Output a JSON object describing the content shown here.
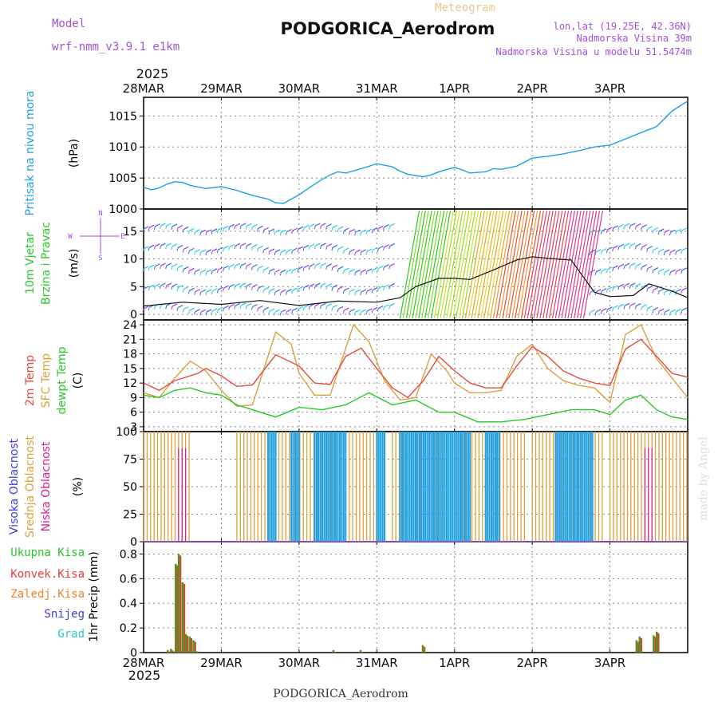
{
  "header": {
    "model_label": "Model",
    "model_name": "wrf-nmm_v3.9.1 e1km",
    "title": "PODGORICA_Aerodrom",
    "subtitle": "Meteogram",
    "lonlat": "lon,lat (19.25E, 42.36N)",
    "elevation": "Nadmorska Visina 39m",
    "model_elevation": "Nadmorska Visina u modelu 51.5474m",
    "year_top": "2025",
    "year_bottom": "2025",
    "footer": "PODGORICA_Aerodrom",
    "watermark": "made by Angel"
  },
  "colors": {
    "pressure": "#1ea0e6",
    "temp2m": "#e84a3c",
    "sfc": "#dca03c",
    "dewpt": "#28c828",
    "label_green": "#28c828",
    "label_red": "#e83c3c",
    "label_orange": "#f08228",
    "label_blue": "#3c3ce6",
    "label_cyan": "#28c8c8",
    "label_magenta": "#dc1e8c",
    "purple": "#a050dc",
    "grid": "#888888"
  },
  "chart_data": [
    {
      "type": "line",
      "panel": "pressure",
      "ylabel_lines": [
        "Pritisak na nivou mora",
        "(hPa)"
      ],
      "ylim": [
        1000,
        1018
      ],
      "yticks": [
        1000,
        1005,
        1010,
        1015
      ],
      "x_ticks": [
        "28MAR",
        "29MAR",
        "30MAR",
        "31MAR",
        "1APR",
        "2APR",
        "3APR"
      ],
      "series": [
        {
          "x": [
            0,
            0.1,
            0.2,
            0.3,
            0.4,
            0.5,
            0.6,
            0.8,
            1.0,
            1.2,
            1.4,
            1.6,
            1.7,
            1.8,
            2.0,
            2.2,
            2.3,
            2.4,
            2.5,
            2.6,
            2.8,
            3.0,
            3.2,
            3.3,
            3.4,
            3.6,
            3.7,
            3.8,
            4.0,
            4.1,
            4.2,
            4.4,
            4.5,
            4.6,
            4.8,
            5.0,
            5.2,
            5.4,
            5.6,
            5.8,
            6.0,
            6.2,
            6.4,
            6.6,
            6.8,
            7.0
          ],
          "values": [
            1003.5,
            1003.1,
            1003.4,
            1004.0,
            1004.4,
            1004.3,
            1003.8,
            1003.3,
            1003.6,
            1003.0,
            1002.2,
            1001.6,
            1001.0,
            1000.9,
            1002.3,
            1004.0,
            1004.8,
            1005.5,
            1006.0,
            1005.8,
            1006.5,
            1007.3,
            1006.8,
            1006.1,
            1005.6,
            1005.2,
            1005.5,
            1006.0,
            1006.7,
            1006.3,
            1005.8,
            1006.0,
            1006.5,
            1006.4,
            1006.9,
            1008.2,
            1008.5,
            1008.9,
            1009.4,
            1010.0,
            1010.3,
            1011.3,
            1012.3,
            1013.3,
            1015.8,
            1017.4
          ]
        }
      ]
    },
    {
      "type": "line",
      "panel": "wind",
      "ylabel_lines": [
        "10m Vjetar",
        "Brzina i Pravac",
        "(m/s)"
      ],
      "direction_legend": [
        "N",
        "S",
        "W",
        "E"
      ],
      "ylim": [
        -1,
        19
      ],
      "yticks": [
        0,
        5,
        10,
        15
      ],
      "series": [
        {
          "name": "brzina",
          "x": [
            0,
            0.5,
            1.0,
            1.5,
            2.0,
            2.5,
            3.0,
            3.3,
            3.5,
            3.8,
            4.0,
            4.2,
            4.5,
            4.8,
            5.0,
            5.3,
            5.5,
            5.8,
            6.0,
            6.3,
            6.5,
            6.8,
            7.0
          ],
          "values": [
            1.5,
            2.2,
            1.8,
            2.5,
            1.6,
            2.4,
            2.2,
            3.0,
            5.0,
            6.5,
            6.5,
            6.3,
            8.0,
            9.8,
            10.4,
            10.0,
            9.8,
            4.0,
            3.2,
            3.4,
            5.5,
            4.2,
            3.0
          ]
        }
      ]
    },
    {
      "type": "line",
      "panel": "temperature",
      "ylabel_lines": [
        "2m Temp",
        "SFC Temp",
        "dewpt Temp",
        "(C)"
      ],
      "ylim": [
        2,
        25
      ],
      "yticks": [
        3,
        6,
        9,
        12,
        15,
        18,
        21,
        24
      ],
      "series": [
        {
          "name": "2m Temp",
          "x": [
            0,
            0.2,
            0.4,
            0.7,
            0.8,
            1.0,
            1.2,
            1.4,
            1.7,
            2.0,
            2.2,
            2.4,
            2.6,
            2.8,
            3.0,
            3.2,
            3.4,
            3.6,
            3.8,
            4.0,
            4.2,
            4.4,
            4.6,
            4.8,
            5.0,
            5.2,
            5.4,
            5.6,
            5.8,
            6.0,
            6.2,
            6.4,
            6.6,
            6.8,
            7.0
          ],
          "values": [
            12,
            10.5,
            12.5,
            14,
            15,
            13.5,
            11.3,
            11.6,
            17.8,
            15.5,
            12.0,
            11.7,
            17.5,
            19.2,
            15.0,
            11.0,
            9.0,
            12.5,
            17.5,
            14.5,
            12.0,
            11.0,
            11.0,
            15.5,
            19.5,
            17.5,
            14.5,
            13.0,
            12.0,
            11.5,
            19.0,
            21.0,
            17.5,
            14.0,
            13.2
          ]
        },
        {
          "name": "SFC Temp",
          "x": [
            0,
            0.2,
            0.4,
            0.6,
            0.8,
            1.0,
            1.2,
            1.4,
            1.7,
            1.9,
            2.0,
            2.2,
            2.4,
            2.7,
            2.9,
            3.1,
            3.3,
            3.5,
            3.7,
            3.9,
            4.0,
            4.2,
            4.4,
            4.6,
            4.8,
            5.0,
            5.2,
            5.4,
            5.6,
            5.8,
            6.0,
            6.2,
            6.4,
            6.6,
            6.8,
            7.0
          ],
          "values": [
            10,
            9,
            13,
            16.5,
            14.5,
            10.5,
            7.2,
            7.5,
            22.5,
            20.0,
            14.0,
            9.5,
            9.5,
            24.0,
            20.5,
            12.5,
            8.5,
            9.0,
            18.0,
            14.5,
            12.0,
            10.0,
            10.0,
            10.5,
            17.5,
            20.0,
            15.0,
            12.5,
            11.5,
            11.0,
            8.0,
            22.0,
            24.0,
            17.0,
            13.0,
            9.0
          ]
        },
        {
          "name": "dewpt Temp",
          "x": [
            0,
            0.2,
            0.4,
            0.6,
            0.8,
            1.0,
            1.2,
            1.4,
            1.7,
            2.0,
            2.3,
            2.6,
            2.9,
            3.2,
            3.5,
            3.8,
            4.0,
            4.3,
            4.6,
            4.9,
            5.2,
            5.5,
            5.8,
            6.0,
            6.2,
            6.4,
            6.6,
            6.8,
            7.0
          ],
          "values": [
            9.5,
            9.0,
            10.5,
            11.0,
            10.0,
            9.5,
            7.5,
            6.5,
            5.0,
            7.0,
            6.5,
            7.5,
            10.0,
            7.5,
            8.5,
            6.0,
            6.0,
            4.0,
            4.0,
            4.5,
            5.5,
            6.5,
            6.5,
            5.5,
            8.5,
            9.5,
            6.5,
            5.0,
            4.5
          ]
        }
      ]
    },
    {
      "type": "bar",
      "panel": "cloud",
      "ylabel_lines": [
        "Visoka Oblacnost",
        "Srednja Oblacnost",
        "Niska Oblacnost",
        "(%)"
      ],
      "ylim": [
        0,
        100
      ],
      "yticks": [
        0,
        25,
        50,
        75,
        100
      ],
      "series": [
        {
          "name": "Srednja Oblacnost",
          "description_ranges": [
            [
              0,
              0.6
            ],
            [
              1.2,
              2.5
            ],
            [
              2.6,
              3.1
            ],
            [
              3.2,
              3.9
            ],
            [
              4.0,
              4.9
            ],
            [
              5.0,
              5.9
            ],
            [
              6.0,
              7.0
            ]
          ],
          "level": 100
        },
        {
          "name": "Visoka Oblacnost",
          "description_ranges": [
            [
              1.6,
              1.7
            ],
            [
              1.9,
              2.0
            ],
            [
              2.2,
              2.6
            ],
            [
              3.0,
              3.1
            ],
            [
              3.3,
              4.2
            ],
            [
              4.4,
              4.6
            ],
            [
              5.3,
              5.8
            ]
          ],
          "level": 100
        },
        {
          "name": "Niska Oblacnost",
          "description_ranges": [
            [
              0.45,
              0.55
            ],
            [
              6.45,
              6.55
            ]
          ],
          "level": 85
        }
      ]
    },
    {
      "type": "bar",
      "panel": "precip",
      "ylabel_lines": [
        "1hr Precip (mm)"
      ],
      "legend": [
        "Ukupna Kisa",
        "Konvek.Kisa",
        "Zaledj.Kisa",
        "Snijeg",
        "Grad"
      ],
      "ylim": [
        0,
        0.9
      ],
      "yticks": [
        0,
        0.2,
        0.4,
        0.6,
        0.8
      ],
      "x_ticks": [
        "28MAR",
        "29MAR",
        "30MAR",
        "31MAR",
        "1APR",
        "2APR",
        "3APR"
      ],
      "x": [
        0.32,
        0.36,
        0.42,
        0.46,
        0.51,
        0.55,
        0.6,
        0.65,
        0.7,
        2.45,
        2.8,
        3.6,
        6.35,
        6.39,
        6.57,
        6.61
      ],
      "values": [
        0.02,
        0.03,
        0.72,
        0.8,
        0.57,
        0.15,
        0.13,
        0.1,
        0.01,
        0.02,
        0.02,
        0.06,
        0.1,
        0.13,
        0.14,
        0.17
      ]
    }
  ]
}
